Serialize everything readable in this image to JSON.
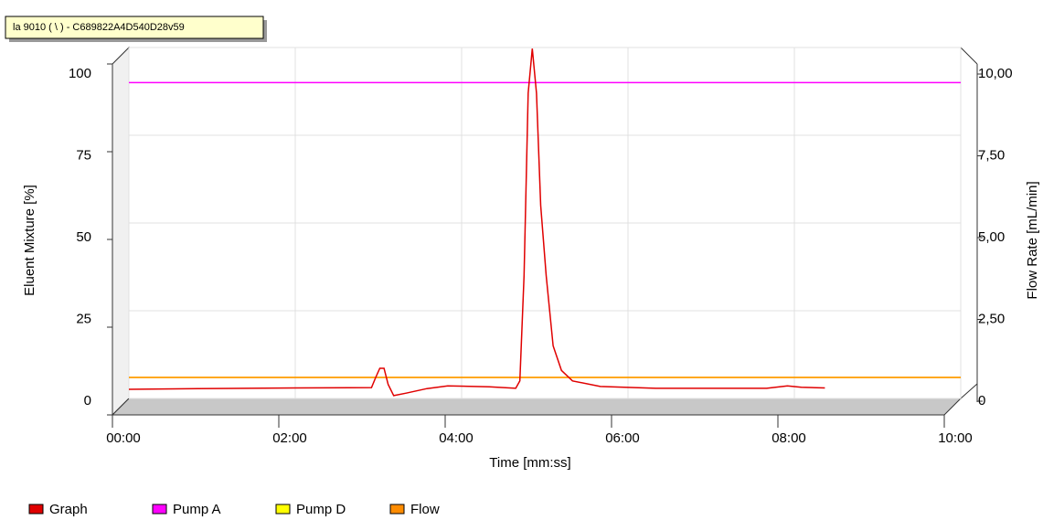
{
  "chart_data": {
    "type": "line",
    "title": "la 9010  ( \\ ) - C689822A4D540D28v59",
    "x_label": "Time [mm:ss]",
    "y_label": "Eluent Mixture [%]",
    "y2_label": "Flow Rate [mL/min]",
    "xlim": [
      0,
      600
    ],
    "xticks": [
      {
        "value": 0,
        "label": "00:00"
      },
      {
        "value": 120,
        "label": "02:00"
      },
      {
        "value": 240,
        "label": "04:00"
      },
      {
        "value": 360,
        "label": "06:00"
      },
      {
        "value": 480,
        "label": "08:00"
      },
      {
        "value": 600,
        "label": "10:00"
      }
    ],
    "ylim": [
      0,
      100
    ],
    "yticks": [
      0,
      25,
      50,
      75,
      100
    ],
    "y2lim": [
      0,
      10
    ],
    "y2ticks": [
      0,
      {
        "value": 2.5,
        "label": "2,50"
      },
      {
        "value": 5,
        "label": "5,00"
      },
      {
        "value": 7.5,
        "label": "7,50"
      },
      {
        "value": 10,
        "label": "10,00"
      }
    ],
    "grid": true,
    "legend": "bottom-left",
    "series": [
      {
        "name": "Graph",
        "color": "#e00000",
        "x": [
          0,
          50,
          120,
          175,
          178,
          181,
          184,
          187,
          191,
          200,
          215,
          230,
          260,
          279,
          282,
          285,
          288,
          291,
          294,
          297,
          301,
          306,
          312,
          320,
          340,
          380,
          430,
          460,
          475,
          485,
          502
        ],
        "values": [
          2.6,
          2.8,
          3.0,
          3.1,
          6,
          8.6,
          8.6,
          4,
          0.8,
          1.5,
          2.8,
          3.6,
          3.3,
          2.9,
          5,
          35,
          87,
          99.7,
          87,
          55,
          35,
          15,
          8,
          5,
          3.4,
          2.9,
          2.9,
          2.9,
          3.6,
          3.2,
          3.0
        ]
      },
      {
        "name": "Pump A",
        "color": "#ff00ff",
        "x": [
          0,
          600
        ],
        "values": [
          90,
          90
        ]
      },
      {
        "name": "Pump D",
        "color": "#ffff00",
        "x": [
          0,
          600
        ],
        "values": [
          6,
          6
        ]
      },
      {
        "name": "Flow",
        "color": "#ff8c00",
        "axis": "y2",
        "x": [
          0,
          600
        ],
        "values": [
          0.6,
          0.6
        ]
      }
    ]
  }
}
